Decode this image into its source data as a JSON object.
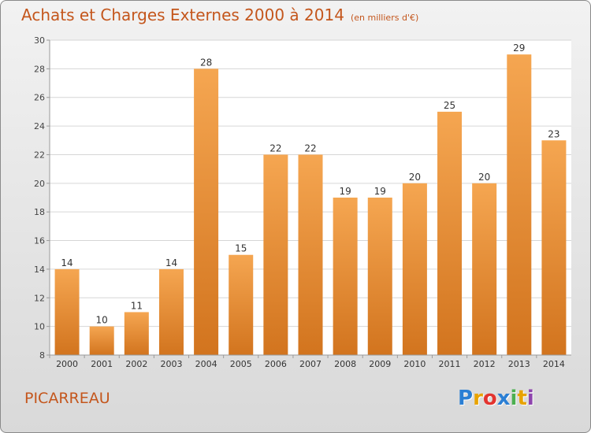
{
  "title": "Achats et Charges Externes 2000 à 2014",
  "subtitle": "(en milliers d'€)",
  "location": "PICARREAU",
  "logo": {
    "letters": [
      "P",
      "r",
      "o",
      "x",
      "i",
      "t",
      "i"
    ],
    "colors": [
      "#2b7fd4",
      "#e8a300",
      "#e3342f",
      "#2b7fd4",
      "#4caf50",
      "#e8a300",
      "#8e44ad"
    ]
  },
  "chart_data": {
    "type": "bar",
    "categories": [
      "2000",
      "2001",
      "2002",
      "2003",
      "2004",
      "2005",
      "2006",
      "2007",
      "2008",
      "2009",
      "2010",
      "2011",
      "2012",
      "2013",
      "2014"
    ],
    "values": [
      14,
      10,
      11,
      14,
      28,
      15,
      22,
      22,
      19,
      19,
      20,
      25,
      20,
      29,
      23
    ],
    "title": "Achats et Charges Externes 2000 à 2014",
    "ylim": [
      8,
      30
    ],
    "yticks": [
      8,
      10,
      12,
      14,
      16,
      18,
      20,
      22,
      24,
      26,
      28,
      30
    ],
    "grid": true,
    "bar_color_top": "#f5a651",
    "bar_color_bottom": "#d2741e",
    "label_color": "#333333"
  }
}
